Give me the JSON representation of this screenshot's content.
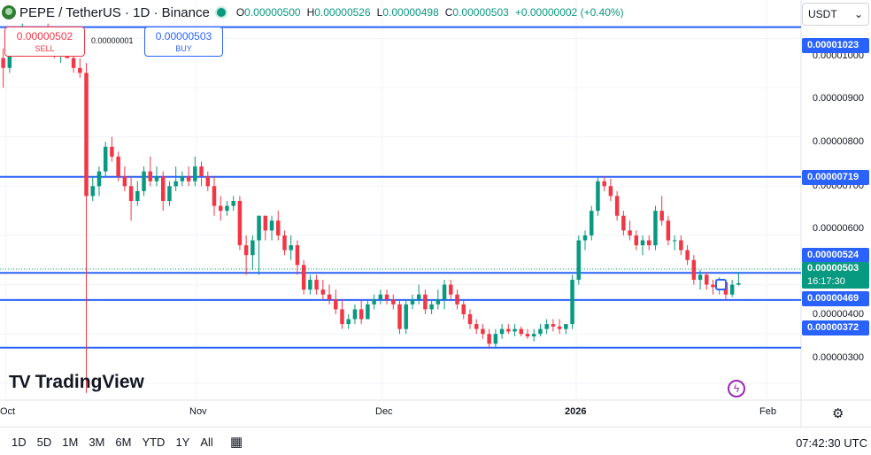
{
  "header": {
    "symbol": "PEPE / TetherUS · 1D · Binance",
    "ohlc": {
      "o_label": "O",
      "o": "0.00000500",
      "h_label": "H",
      "h": "0.00000526",
      "l_label": "L",
      "l": "0.00000498",
      "c_label": "C",
      "c": "0.00000503",
      "change": "+0.00000002 (+0.40%)"
    }
  },
  "quotes": {
    "sell_price": "0.00000502",
    "sell_label": "SELL",
    "spread": "0.00000001",
    "buy_price": "0.00000503",
    "buy_label": "BUY"
  },
  "currency": {
    "selected": "USDT"
  },
  "price_axis": {
    "ticks": [
      "0.00001000",
      "0.00000900",
      "0.00000800",
      "0.00000700",
      "0.00000600",
      "0.00000400",
      "0.00000300"
    ]
  },
  "lines": {
    "top": "0.00001023",
    "upper": "0.00000719",
    "mid": "0.00000524",
    "lower": "0.00000469",
    "bottom": "0.00000372"
  },
  "last_price": {
    "price": "0.00000503",
    "countdown": "16:17:30"
  },
  "time_axis": {
    "labels": [
      "Oct",
      "Nov",
      "Dec",
      "2026",
      "Feb"
    ]
  },
  "branding": {
    "logo_mark": "TV",
    "logo_text": "TradingView"
  },
  "bottom": {
    "ranges": [
      "1D",
      "5D",
      "1M",
      "3M",
      "6M",
      "YTD",
      "1Y",
      "All"
    ],
    "clock": "07:42:30 UTC"
  },
  "colors": {
    "up": "#089981",
    "down": "#f23645",
    "line": "#2962ff",
    "accent": "#9c27b0"
  },
  "icons": [
    "pepe-coin-icon",
    "market-status-icon",
    "chevron-down-icon",
    "lightning-icon",
    "gear-icon",
    "calendar-icon"
  ],
  "chart_data": {
    "type": "candlestick",
    "x_axis_labels": [
      "Oct",
      "Nov",
      "Dec",
      "2026",
      "Feb"
    ],
    "ylim": [
      2.8e-06,
      1.06e-05
    ],
    "horizontal_lines": [
      1.023e-05,
      7.19e-06,
      5.24e-06,
      4.69e-06,
      3.72e-06
    ],
    "last_close": 5.03e-06,
    "ohlc": [
      [
        9.6e-06,
        9.8e-06,
        9e-06,
        9.4e-06
      ],
      [
        9.4e-06,
        9.9e-06,
        9.3e-06,
        9.8e-06
      ],
      [
        9.8e-06,
        1.01e-05,
        9.7e-06,
        1e-05
      ],
      [
        1e-05,
        1.03e-05,
        9.85e-06,
        1.01e-05
      ],
      [
        1.01e-05,
        1.02e-05,
        9.8e-06,
        9.9e-06
      ],
      [
        9.9e-06,
        1.01e-05,
        9.7e-06,
        1e-05
      ],
      [
        1e-05,
        1.02e-05,
        9.8e-06,
        1.01e-05
      ],
      [
        1.01e-05,
        1.03e-05,
        9.9e-06,
        1e-05
      ],
      [
        1e-05,
        1.01e-05,
        9.6e-06,
        9.7e-06
      ],
      [
        9.7e-06,
        9.9e-06,
        9.5e-06,
        9.8e-06
      ],
      [
        9.8e-06,
        1.02e-05,
        9.6e-06,
        9.6e-06
      ],
      [
        9.6e-06,
        9.7e-06,
        9.3e-06,
        9.4e-06
      ],
      [
        9.4e-06,
        9.6e-06,
        9.2e-06,
        9.3e-06
      ],
      [
        9.3e-06,
        9.5e-06,
        2.8e-06,
        6.8e-06
      ],
      [
        6.8e-06,
        7.2e-06,
        6.7e-06,
        7e-06
      ],
      [
        7e-06,
        7.4e-06,
        6.8e-06,
        7.3e-06
      ],
      [
        7.3e-06,
        7.9e-06,
        7.2e-06,
        7.8e-06
      ],
      [
        7.8e-06,
        8e-06,
        7.5e-06,
        7.6e-06
      ],
      [
        7.6e-06,
        7.7e-06,
        7.1e-06,
        7.2e-06
      ],
      [
        7.2e-06,
        7.4e-06,
        6.9e-06,
        7e-06
      ],
      [
        7e-06,
        7.2e-06,
        6.3e-06,
        6.7e-06
      ],
      [
        6.7e-06,
        7.1e-06,
        6.6e-06,
        6.9e-06
      ],
      [
        6.9e-06,
        7.4e-06,
        6.8e-06,
        7.3e-06
      ],
      [
        7.3e-06,
        7.6e-06,
        7e-06,
        7.1e-06
      ],
      [
        7.1e-06,
        7.4e-06,
        7e-06,
        7.2e-06
      ],
      [
        7.2e-06,
        7.3e-06,
        6.5e-06,
        6.7e-06
      ],
      [
        6.7e-06,
        7.1e-06,
        6.6e-06,
        7e-06
      ],
      [
        7e-06,
        7.4e-06,
        6.9e-06,
        7.1e-06
      ],
      [
        7.1e-06,
        7.3e-06,
        7e-06,
        7.2e-06
      ],
      [
        7.2e-06,
        7.4e-06,
        7e-06,
        7.1e-06
      ],
      [
        7.1e-06,
        7.6e-06,
        7e-06,
        7.4e-06
      ],
      [
        7.4e-06,
        7.5e-06,
        7e-06,
        7.2e-06
      ],
      [
        7.2e-06,
        7.3e-06,
        6.9e-06,
        7e-06
      ],
      [
        7e-06,
        7.2e-06,
        6.4e-06,
        6.6e-06
      ],
      [
        6.6e-06,
        6.8e-06,
        6.3e-06,
        6.5e-06
      ],
      [
        6.5e-06,
        6.7e-06,
        6.4e-06,
        6.6e-06
      ],
      [
        6.6e-06,
        6.8e-06,
        6.5e-06,
        6.7e-06
      ],
      [
        6.7e-06,
        6.8e-06,
        5.7e-06,
        5.8e-06
      ],
      [
        5.8e-06,
        6e-06,
        5.2e-06,
        5.6e-06
      ],
      [
        5.6e-06,
        6e-06,
        5.3e-06,
        5.9e-06
      ],
      [
        5.9e-06,
        6.4e-06,
        5.2e-06,
        6.4e-06
      ],
      [
        6.4e-06,
        6.4e-06,
        5.9e-06,
        6.1e-06
      ],
      [
        6.1e-06,
        6.4e-06,
        5.9e-06,
        6.3e-06
      ],
      [
        6.3e-06,
        6.5e-06,
        5.9e-06,
        6e-06
      ],
      [
        6e-06,
        6.1e-06,
        5.6e-06,
        5.7e-06
      ],
      [
        5.7e-06,
        6e-06,
        5.5e-06,
        5.8e-06
      ],
      [
        5.8e-06,
        5.9e-06,
        5.2e-06,
        5.4e-06
      ],
      [
        5.4e-06,
        5.5e-06,
        4.8e-06,
        4.9e-06
      ],
      [
        4.9e-06,
        5.2e-06,
        4.8e-06,
        5.1e-06
      ],
      [
        5.1e-06,
        5.2e-06,
        4.8e-06,
        4.9e-06
      ],
      [
        4.9e-06,
        5.1e-06,
        4.7e-06,
        4.8e-06
      ],
      [
        4.8e-06,
        5e-06,
        4.6e-06,
        4.7e-06
      ],
      [
        4.7e-06,
        4.9e-06,
        4.4e-06,
        4.5e-06
      ],
      [
        4.5e-06,
        4.7e-06,
        4.1e-06,
        4.2e-06
      ],
      [
        4.2e-06,
        4.4e-06,
        4.1e-06,
        4.3e-06
      ],
      [
        4.3e-06,
        4.6e-06,
        4.2e-06,
        4.5e-06
      ],
      [
        4.5e-06,
        4.7e-06,
        4.2e-06,
        4.3e-06
      ],
      [
        4.3e-06,
        4.7e-06,
        4.3e-06,
        4.6e-06
      ],
      [
        4.6e-06,
        4.8e-06,
        4.5e-06,
        4.7e-06
      ],
      [
        4.7e-06,
        4.9e-06,
        4.6e-06,
        4.8e-06
      ],
      [
        4.8e-06,
        4.9e-06,
        4.6e-06,
        4.7e-06
      ],
      [
        4.7e-06,
        4.8e-06,
        4.5e-06,
        4.6e-06
      ],
      [
        4.6e-06,
        4.7e-06,
        4e-06,
        4.1e-06
      ],
      [
        4.1e-06,
        4.7e-06,
        4e-06,
        4.6e-06
      ],
      [
        4.6e-06,
        4.8e-06,
        4.5e-06,
        4.7e-06
      ],
      [
        4.7e-06,
        5e-06,
        4.6e-06,
        4.8e-06
      ],
      [
        4.8e-06,
        4.9e-06,
        4.4e-06,
        4.5e-06
      ],
      [
        4.5e-06,
        4.7e-06,
        4.4e-06,
        4.6e-06
      ],
      [
        4.6e-06,
        4.9e-06,
        4.5e-06,
        4.7e-06
      ],
      [
        4.7e-06,
        5.1e-06,
        4.5e-06,
        5e-06
      ],
      [
        5e-06,
        5.1e-06,
        4.7e-06,
        4.8e-06
      ],
      [
        4.8e-06,
        4.9e-06,
        4.5e-06,
        4.6e-06
      ],
      [
        4.6e-06,
        4.7e-06,
        4.3e-06,
        4.4e-06
      ],
      [
        4.4e-06,
        4.5e-06,
        4.1e-06,
        4.2e-06
      ],
      [
        4.2e-06,
        4.3e-06,
        4e-06,
        4.1e-06
      ],
      [
        4.1e-06,
        4.2e-06,
        3.9e-06,
        4e-06
      ],
      [
        4e-06,
        4.1e-06,
        3.7e-06,
        3.8e-06
      ],
      [
        3.8e-06,
        4.1e-06,
        3.7e-06,
        4e-06
      ],
      [
        4e-06,
        4.2e-06,
        3.9e-06,
        4.1e-06
      ],
      [
        4.1e-06,
        4.2e-06,
        4e-06,
        4.05e-06
      ],
      [
        4.05e-06,
        4.2e-06,
        3.95e-06,
        4.1e-06
      ],
      [
        4.1e-06,
        4.15e-06,
        3.95e-06,
        4e-06
      ],
      [
        4e-06,
        4.1e-06,
        3.9e-06,
        3.95e-06
      ],
      [
        3.95e-06,
        4.1e-06,
        3.85e-06,
        4e-06
      ],
      [
        4e-06,
        4.2e-06,
        3.95e-06,
        4.1e-06
      ],
      [
        4.1e-06,
        4.3e-06,
        4e-06,
        4.2e-06
      ],
      [
        4.2e-06,
        4.3e-06,
        4.05e-06,
        4.15e-06
      ],
      [
        4.15e-06,
        4.3e-06,
        4e-06,
        4.1e-06
      ],
      [
        4.1e-06,
        4.2e-06,
        4e-06,
        4.2e-06
      ],
      [
        4.2e-06,
        5.2e-06,
        4.1e-06,
        5.1e-06
      ],
      [
        5.1e-06,
        6e-06,
        5e-06,
        5.9e-06
      ],
      [
        5.9e-06,
        6.1e-06,
        5.7e-06,
        6e-06
      ],
      [
        6e-06,
        6.6e-06,
        5.9e-06,
        6.5e-06
      ],
      [
        6.5e-06,
        7.2e-06,
        6.4e-06,
        7.1e-06
      ],
      [
        7.1e-06,
        7.2e-06,
        6.9e-06,
        7e-06
      ],
      [
        7e-06,
        7.15e-06,
        6.7e-06,
        6.8e-06
      ],
      [
        6.8e-06,
        6.9e-06,
        6.3e-06,
        6.4e-06
      ],
      [
        6.4e-06,
        6.5e-06,
        6e-06,
        6.1e-06
      ],
      [
        6.1e-06,
        6.3e-06,
        5.9e-06,
        6e-06
      ],
      [
        6e-06,
        6.1e-06,
        5.7e-06,
        5.8e-06
      ],
      [
        5.8e-06,
        6e-06,
        5.6e-06,
        5.9e-06
      ],
      [
        5.9e-06,
        6e-06,
        5.7e-06,
        5.8e-06
      ],
      [
        5.8e-06,
        6.6e-06,
        5.7e-06,
        6.5e-06
      ],
      [
        6.5e-06,
        6.8e-06,
        6.2e-06,
        6.3e-06
      ],
      [
        6.3e-06,
        6.4e-06,
        5.8e-06,
        5.9e-06
      ],
      [
        5.9e-06,
        6e-06,
        5.7e-06,
        5.9e-06
      ],
      [
        5.9e-06,
        6e-06,
        5.6e-06,
        5.7e-06
      ],
      [
        5.7e-06,
        5.8e-06,
        5.4e-06,
        5.5e-06
      ],
      [
        5.5e-06,
        5.6e-06,
        5e-06,
        5.1e-06
      ],
      [
        5.1e-06,
        5.3e-06,
        4.9e-06,
        5.2e-06
      ],
      [
        5.2e-06,
        5.25e-06,
        4.9e-06,
        5e-06
      ],
      [
        5e-06,
        5.1e-06,
        4.8e-06,
        4.95e-06
      ],
      [
        4.95e-06,
        5.15e-06,
        4.8e-06,
        5.05e-06
      ],
      [
        5.05e-06,
        5.1e-06,
        4.7e-06,
        4.8e-06
      ],
      [
        4.8e-06,
        5.1e-06,
        4.75e-06,
        5e-06
      ],
      [
        5e-06,
        5.26e-06,
        4.98e-06,
        5.03e-06
      ]
    ]
  }
}
